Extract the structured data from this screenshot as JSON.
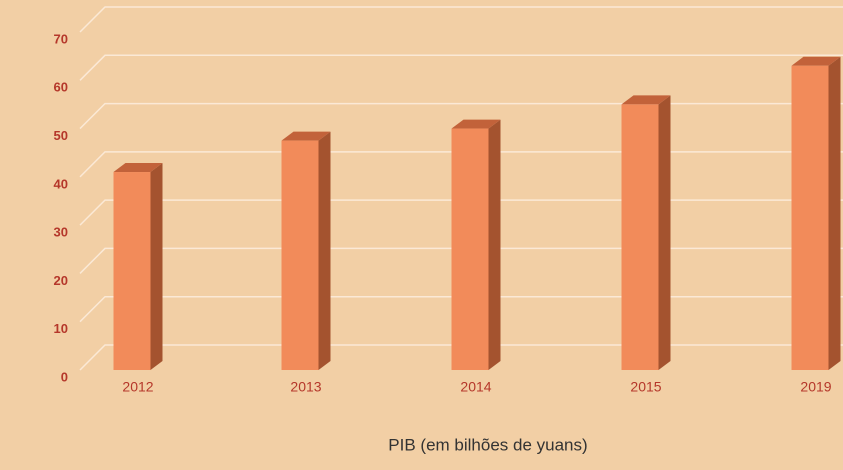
{
  "chart_data": {
    "type": "bar",
    "x_label": "PIB (em bilhões de yuans)",
    "categories": [
      "2012",
      "2013",
      "2014",
      "2015",
      "2019"
    ],
    "values": [
      41,
      47.5,
      50,
      55,
      63
    ],
    "color": "#f28b5a",
    "ylim": [
      0,
      70
    ],
    "yticks": [
      0,
      10,
      20,
      30,
      40,
      50,
      60,
      70
    ],
    "grid": true
  }
}
